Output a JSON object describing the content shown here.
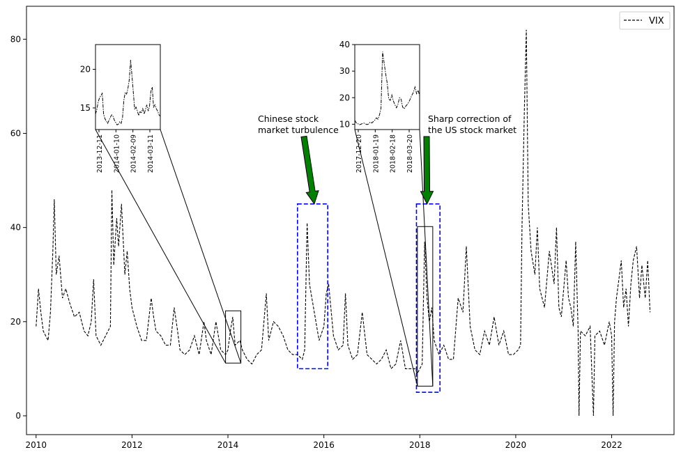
{
  "chart_data": {
    "type": "line",
    "title": "",
    "xlabel": "",
    "ylabel": "",
    "xlim": [
      2009.8,
      2023.3
    ],
    "ylim": [
      -4,
      87
    ],
    "x_ticks": [
      2010,
      2012,
      2014,
      2016,
      2018,
      2020,
      2022
    ],
    "x_tick_labels": [
      "2010",
      "2012",
      "2014",
      "2016",
      "2018",
      "2020",
      "2022"
    ],
    "y_ticks": [
      0,
      20,
      40,
      60,
      80
    ],
    "y_tick_labels": [
      "0",
      "20",
      "40",
      "60",
      "80"
    ],
    "grid": false,
    "legend": {
      "position": "top-right",
      "entries": [
        {
          "label": "VIX",
          "style": "dashed",
          "color": "#000000"
        }
      ]
    },
    "series": [
      {
        "name": "VIX",
        "color": "#000000",
        "style": "dashed",
        "points": [
          [
            2010.0,
            19
          ],
          [
            2010.05,
            27
          ],
          [
            2010.1,
            22
          ],
          [
            2010.15,
            18
          ],
          [
            2010.2,
            17
          ],
          [
            2010.25,
            16
          ],
          [
            2010.3,
            22
          ],
          [
            2010.35,
            35
          ],
          [
            2010.38,
            46
          ],
          [
            2010.42,
            30
          ],
          [
            2010.48,
            34
          ],
          [
            2010.55,
            25
          ],
          [
            2010.62,
            27
          ],
          [
            2010.7,
            24
          ],
          [
            2010.8,
            21
          ],
          [
            2010.9,
            22
          ],
          [
            2011.0,
            18
          ],
          [
            2011.08,
            17
          ],
          [
            2011.15,
            20
          ],
          [
            2011.2,
            29
          ],
          [
            2011.25,
            17
          ],
          [
            2011.35,
            15
          ],
          [
            2011.45,
            17
          ],
          [
            2011.55,
            19
          ],
          [
            2011.58,
            48
          ],
          [
            2011.62,
            32
          ],
          [
            2011.68,
            42
          ],
          [
            2011.72,
            36
          ],
          [
            2011.78,
            45
          ],
          [
            2011.85,
            30
          ],
          [
            2011.9,
            35
          ],
          [
            2011.95,
            27
          ],
          [
            2012.0,
            23
          ],
          [
            2012.1,
            19
          ],
          [
            2012.2,
            16
          ],
          [
            2012.3,
            16
          ],
          [
            2012.4,
            25
          ],
          [
            2012.45,
            21
          ],
          [
            2012.5,
            18
          ],
          [
            2012.6,
            17
          ],
          [
            2012.7,
            15
          ],
          [
            2012.8,
            15
          ],
          [
            2012.88,
            23
          ],
          [
            2012.95,
            18
          ],
          [
            2013.0,
            14
          ],
          [
            2013.1,
            13
          ],
          [
            2013.2,
            14
          ],
          [
            2013.3,
            17
          ],
          [
            2013.4,
            13
          ],
          [
            2013.5,
            20
          ],
          [
            2013.55,
            16
          ],
          [
            2013.65,
            13
          ],
          [
            2013.75,
            20
          ],
          [
            2013.85,
            14
          ],
          [
            2013.95,
            13
          ],
          [
            2014.0,
            14
          ],
          [
            2014.05,
            18
          ],
          [
            2014.1,
            21
          ],
          [
            2014.15,
            15
          ],
          [
            2014.25,
            16
          ],
          [
            2014.3,
            14
          ],
          [
            2014.4,
            12
          ],
          [
            2014.5,
            11
          ],
          [
            2014.6,
            13
          ],
          [
            2014.7,
            14
          ],
          [
            2014.8,
            26
          ],
          [
            2014.85,
            16
          ],
          [
            2014.95,
            20
          ],
          [
            2015.05,
            19
          ],
          [
            2015.15,
            17
          ],
          [
            2015.25,
            14
          ],
          [
            2015.35,
            13
          ],
          [
            2015.45,
            13
          ],
          [
            2015.55,
            12
          ],
          [
            2015.6,
            14
          ],
          [
            2015.65,
            41
          ],
          [
            2015.7,
            28
          ],
          [
            2015.8,
            22
          ],
          [
            2015.9,
            16
          ],
          [
            2016.0,
            19
          ],
          [
            2016.05,
            26
          ],
          [
            2016.1,
            28
          ],
          [
            2016.2,
            17
          ],
          [
            2016.3,
            14
          ],
          [
            2016.4,
            15
          ],
          [
            2016.45,
            26
          ],
          [
            2016.5,
            15
          ],
          [
            2016.6,
            12
          ],
          [
            2016.7,
            13
          ],
          [
            2016.8,
            22
          ],
          [
            2016.9,
            13
          ],
          [
            2017.0,
            12
          ],
          [
            2017.1,
            11
          ],
          [
            2017.2,
            12
          ],
          [
            2017.3,
            14
          ],
          [
            2017.4,
            10
          ],
          [
            2017.5,
            11
          ],
          [
            2017.6,
            16
          ],
          [
            2017.7,
            10
          ],
          [
            2017.8,
            10
          ],
          [
            2017.9,
            10
          ],
          [
            2017.95,
            9
          ],
          [
            2018.0,
            10
          ],
          [
            2018.05,
            11
          ],
          [
            2018.1,
            37
          ],
          [
            2018.15,
            25
          ],
          [
            2018.2,
            20
          ],
          [
            2018.25,
            23
          ],
          [
            2018.3,
            16
          ],
          [
            2018.4,
            13
          ],
          [
            2018.5,
            15
          ],
          [
            2018.6,
            12
          ],
          [
            2018.7,
            12
          ],
          [
            2018.8,
            25
          ],
          [
            2018.9,
            22
          ],
          [
            2018.97,
            36
          ],
          [
            2019.05,
            19
          ],
          [
            2019.15,
            14
          ],
          [
            2019.25,
            13
          ],
          [
            2019.35,
            18
          ],
          [
            2019.45,
            15
          ],
          [
            2019.55,
            21
          ],
          [
            2019.65,
            15
          ],
          [
            2019.75,
            18
          ],
          [
            2019.85,
            13
          ],
          [
            2019.95,
            13
          ],
          [
            2020.05,
            14
          ],
          [
            2020.1,
            15
          ],
          [
            2020.13,
            40
          ],
          [
            2020.18,
            65
          ],
          [
            2020.22,
            82
          ],
          [
            2020.26,
            45
          ],
          [
            2020.32,
            35
          ],
          [
            2020.4,
            30
          ],
          [
            2020.45,
            40
          ],
          [
            2020.5,
            27
          ],
          [
            2020.6,
            23
          ],
          [
            2020.7,
            35
          ],
          [
            2020.8,
            28
          ],
          [
            2020.85,
            40
          ],
          [
            2020.9,
            23
          ],
          [
            2020.95,
            21
          ],
          [
            2021.05,
            33
          ],
          [
            2021.1,
            25
          ],
          [
            2021.15,
            23
          ],
          [
            2021.2,
            19
          ],
          [
            2021.25,
            37
          ],
          [
            2021.3,
            18
          ],
          [
            2021.32,
            0
          ],
          [
            2021.35,
            18
          ],
          [
            2021.45,
            17
          ],
          [
            2021.55,
            19
          ],
          [
            2021.62,
            0
          ],
          [
            2021.65,
            17
          ],
          [
            2021.75,
            18
          ],
          [
            2021.85,
            15
          ],
          [
            2021.95,
            20
          ],
          [
            2022.0,
            17
          ],
          [
            2022.03,
            0
          ],
          [
            2022.06,
            20
          ],
          [
            2022.1,
            25
          ],
          [
            2022.15,
            29
          ],
          [
            2022.2,
            33
          ],
          [
            2022.25,
            23
          ],
          [
            2022.3,
            27
          ],
          [
            2022.35,
            19
          ],
          [
            2022.4,
            28
          ],
          [
            2022.45,
            33
          ],
          [
            2022.52,
            36
          ],
          [
            2022.58,
            25
          ],
          [
            2022.63,
            32
          ],
          [
            2022.7,
            25
          ],
          [
            2022.75,
            33
          ],
          [
            2022.8,
            22
          ]
        ]
      }
    ],
    "zoom_boxes": [
      {
        "xlim": [
          2013.95,
          2014.27
        ],
        "ylim": [
          11.2,
          22.3
        ],
        "color": "#000000"
      },
      {
        "xlim": [
          2017.95,
          2018.27
        ],
        "ylim": [
          6.3,
          40.2
        ],
        "color": "#000000"
      }
    ],
    "highlight_boxes": [
      {
        "xlim": [
          2015.45,
          2016.08
        ],
        "ylim": [
          10,
          45
        ],
        "color": "#0000ff"
      },
      {
        "xlim": [
          2017.93,
          2018.42
        ],
        "ylim": [
          5,
          45
        ],
        "color": "#0000ff"
      }
    ],
    "annotations": [
      {
        "text_lines": [
          "Chinese stock",
          " market turbulence"
        ],
        "arrow_tip": [
          2015.8,
          45
        ],
        "arrow_color": "#008000"
      },
      {
        "text_lines": [
          "Sharp correction of",
          " the US stock market"
        ],
        "arrow_tip": [
          2018.15,
          45
        ],
        "arrow_color": "#008000"
      }
    ],
    "insets": [
      {
        "ylim": [
          12.2,
          23.2
        ],
        "y_ticks": [
          15,
          20
        ],
        "y_tick_labels": [
          "15",
          "20"
        ],
        "x_tick_labels": [
          "2013-12-11",
          "2014-01-10",
          "2014-02-09",
          "2014-03-11"
        ],
        "values": [
          14.2,
          14.8,
          15.8,
          16.3,
          16.6,
          16.9,
          14.2,
          13.6,
          13.3,
          13.0,
          13.4,
          13.8,
          14.1,
          13.9,
          13.4,
          13.1,
          12.8,
          12.9,
          13.2,
          13.0,
          13.8,
          16.0,
          17.0,
          16.8,
          17.5,
          18.6,
          21.2,
          19.2,
          17.0,
          14.8,
          15.1,
          14.6,
          14.0,
          14.5,
          14.4,
          14.9,
          14.2,
          14.8,
          15.4,
          14.6,
          15.2,
          17.1,
          17.7,
          15.1,
          15.4,
          14.9,
          14.6,
          14.1,
          13.9
        ]
      },
      {
        "ylim": [
          8,
          40
        ],
        "y_ticks": [
          10,
          20,
          30,
          40
        ],
        "y_tick_labels": [
          "10",
          "20",
          "30",
          "40"
        ],
        "x_tick_labels": [
          "2017-12-20",
          "2018-01-19",
          "2018-02-18",
          "2018-03-20"
        ],
        "values": [
          11.5,
          10.5,
          10.2,
          9.8,
          10.0,
          10.3,
          10.4,
          10.1,
          9.9,
          10.1,
          10.8,
          10.5,
          11.0,
          11.6,
          12.4,
          11.9,
          13.5,
          16.0,
          37.3,
          33.0,
          29.0,
          25.5,
          19.5,
          19.0,
          21.0,
          18.7,
          17.3,
          16.2,
          17.6,
          20.0,
          19.4,
          16.5,
          15.8,
          16.8,
          17.5,
          18.3,
          19.6,
          20.9,
          22.0,
          24.0,
          21.5,
          22.8,
          20.8
        ]
      }
    ]
  }
}
